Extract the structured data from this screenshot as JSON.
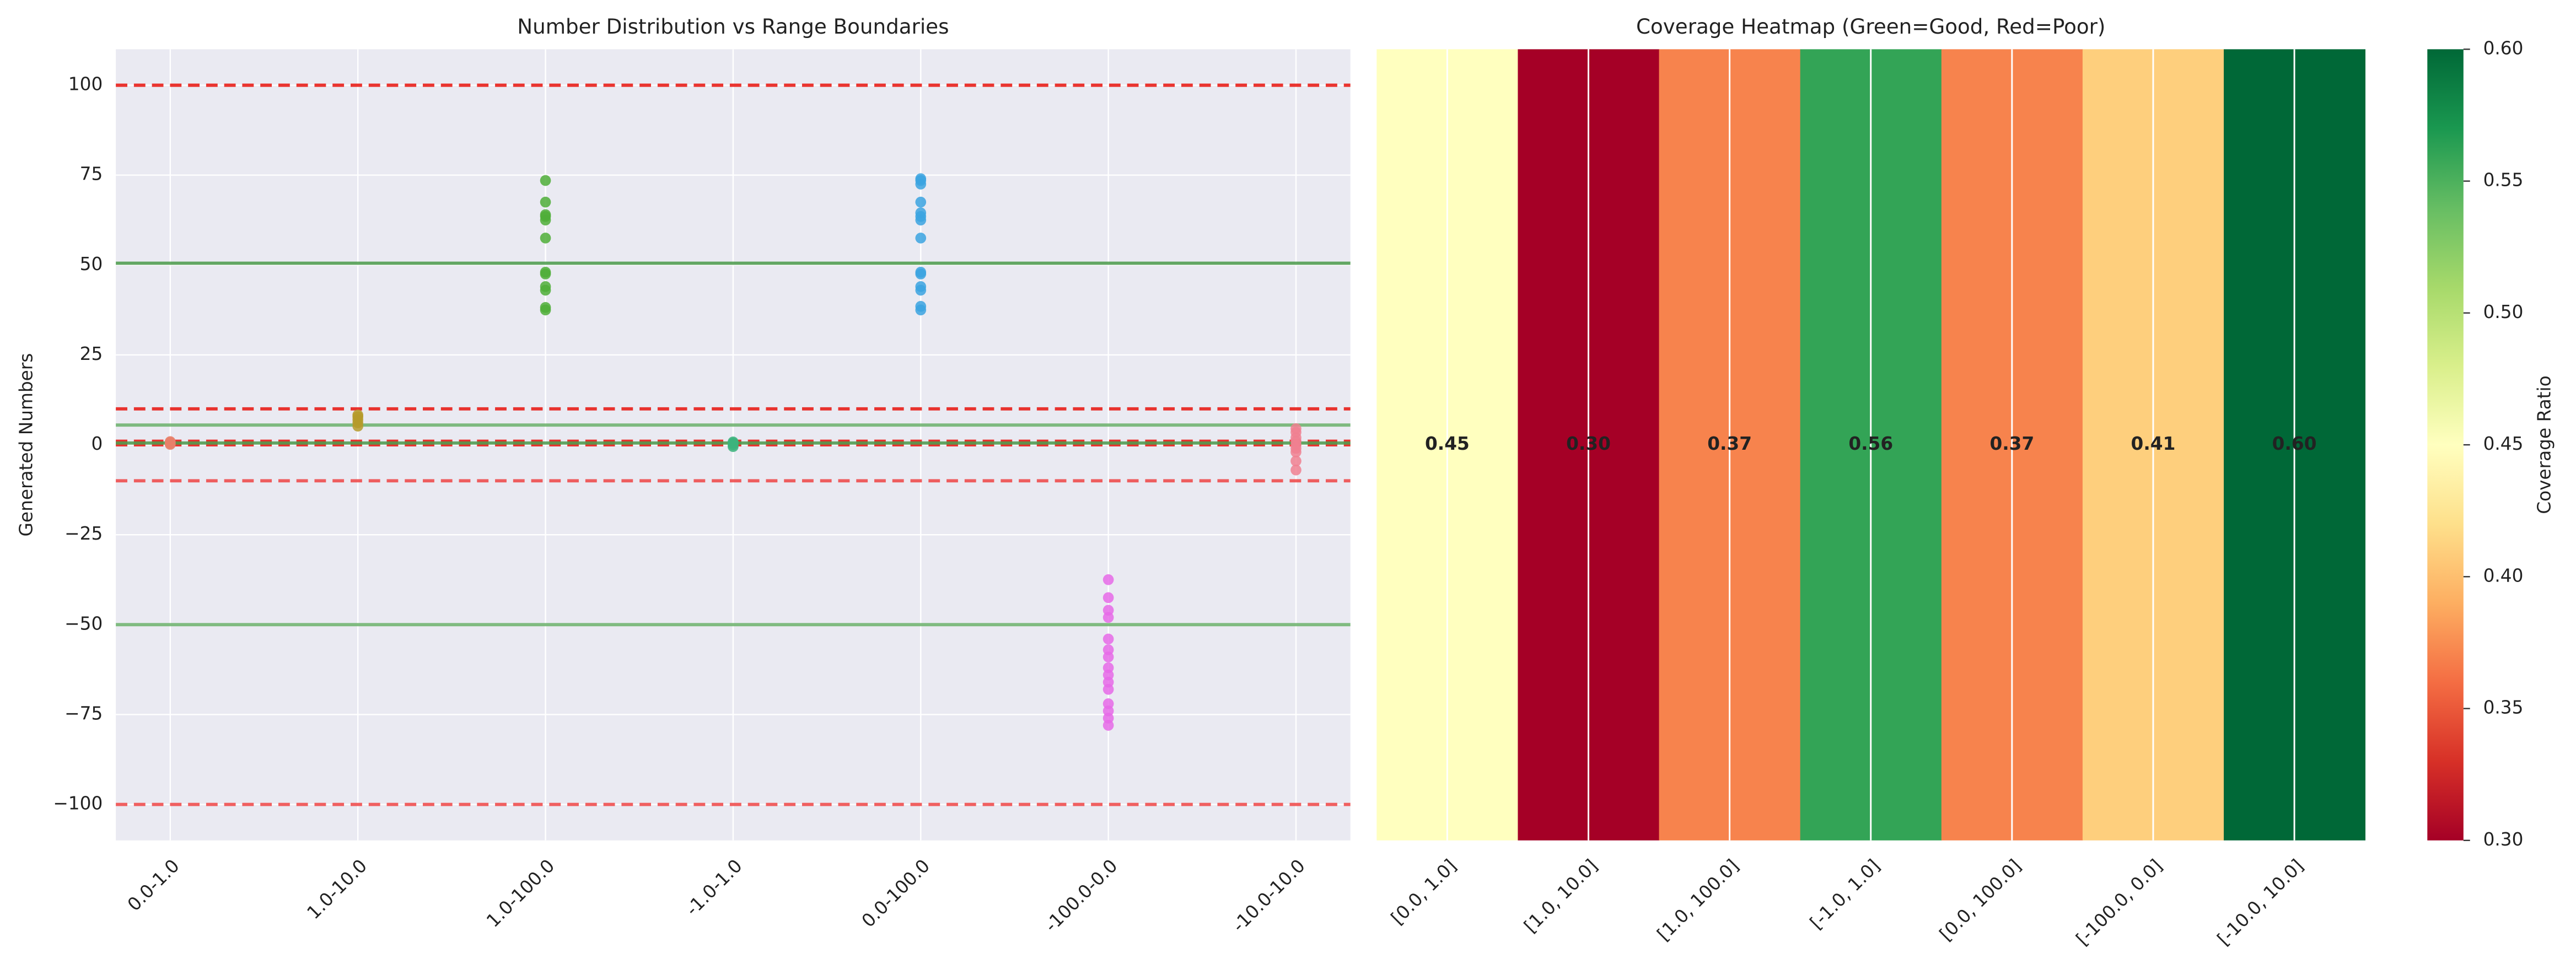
{
  "chart_data": [
    {
      "type": "strip",
      "title": "Number Distribution vs Range Boundaries",
      "y_label": "Generated Numbers",
      "categories": [
        "0.0-1.0",
        "1.0-10.0",
        "1.0-100.0",
        "-1.0-1.0",
        "0.0-100.0",
        "-100.0-0.0",
        "-10.0-10.0"
      ],
      "colors": [
        "#e8806a",
        "#b59a2a",
        "#4fae38",
        "#3cb37c",
        "#3ba3e0",
        "#e66ae8",
        "#f08090"
      ],
      "values": [
        [
          0.1,
          0.3,
          0.5,
          0.7,
          0.9
        ],
        [
          5.2,
          6.1,
          7.0,
          7.8,
          8.3
        ],
        [
          37.5,
          38.2,
          43,
          44,
          47.5,
          48,
          57.5,
          62.5,
          63.5,
          64,
          67.5,
          73.5
        ],
        [
          -0.5,
          0,
          0.5,
          0.8
        ],
        [
          37.5,
          38.5,
          43,
          44,
          47.5,
          48,
          57.5,
          62.5,
          63.5,
          64.5,
          67.5,
          72.5,
          73.5,
          74
        ],
        [
          -37.5,
          -42.5,
          -46,
          -48,
          -54,
          -57,
          -59,
          -62,
          -64,
          -66,
          -68,
          -72,
          -74,
          -76,
          -78
        ],
        [
          -7,
          -4.5,
          -2,
          -1,
          0,
          1,
          2,
          3.5,
          4.5
        ]
      ],
      "reference_lines": [
        {
          "value": 100,
          "color": "#e8120c",
          "style": "dashed"
        },
        {
          "value": 10,
          "color": "#e8120c",
          "style": "dashed"
        },
        {
          "value": 1,
          "color": "#e8120c",
          "style": "dashed"
        },
        {
          "value": 0,
          "color": "#e8120c",
          "style": "dashed"
        },
        {
          "value": -10,
          "color": "#ee4444",
          "style": "dashed"
        },
        {
          "value": -100,
          "color": "#ee4444",
          "style": "dashed"
        },
        {
          "value": 50.5,
          "color": "#4a9a4a",
          "style": "solid"
        },
        {
          "value": 5.5,
          "color": "#6ab06a",
          "style": "solid"
        },
        {
          "value": 0.5,
          "color": "#4a9a4a",
          "style": "solid"
        },
        {
          "value": -50,
          "color": "#6ab06a",
          "style": "solid"
        }
      ],
      "ylim": [
        -110,
        110
      ],
      "yticks": [
        {
          "value": -100,
          "label": "−100"
        },
        {
          "value": -75,
          "label": "−75"
        },
        {
          "value": -50,
          "label": "−50"
        },
        {
          "value": -25,
          "label": "−25"
        },
        0,
        25,
        50,
        75,
        100
      ],
      "grid": true
    },
    {
      "type": "heatmap",
      "title": "Coverage Heatmap (Green=Good, Red=Poor)",
      "categories": [
        "[0.0, 1.0]",
        "[1.0, 10.0]",
        "[1.0, 100.0]",
        "[-1.0, 1.0]",
        "[0.0, 100.0]",
        "[-100.0, 0.0]",
        "[-10.0, 10.0]"
      ],
      "values": [
        0.45,
        0.3,
        0.37,
        0.56,
        0.37,
        0.41,
        0.6
      ],
      "value_labels": [
        "0.45",
        "0.30",
        "0.37",
        "0.56",
        "0.37",
        "0.41",
        "0.60"
      ],
      "colormap": "RdYlGn",
      "colorbar_label": "Coverage Ratio",
      "clim": [
        0.3,
        0.6
      ],
      "cticks": [
        {
          "value": 0.3,
          "label": "0.30"
        },
        {
          "value": 0.35,
          "label": "0.35"
        },
        {
          "value": 0.4,
          "label": "0.40"
        },
        {
          "value": 0.45,
          "label": "0.45"
        },
        {
          "value": 0.5,
          "label": "0.50"
        },
        {
          "value": 0.55,
          "label": "0.55"
        },
        {
          "value": 0.6,
          "label": "0.60"
        }
      ]
    }
  ]
}
